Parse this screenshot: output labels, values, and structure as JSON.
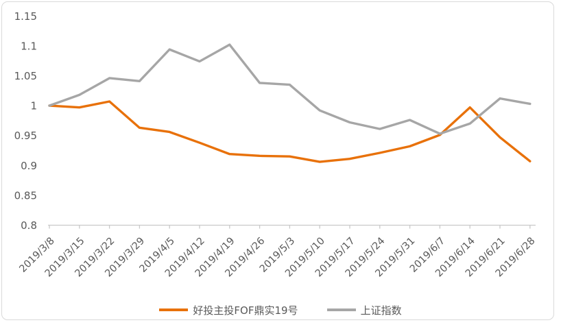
{
  "chart_data": {
    "type": "line",
    "categories": [
      "2019/3/8",
      "2019/3/15",
      "2019/3/22",
      "2019/3/29",
      "2019/4/5",
      "2019/4/12",
      "2019/4/19",
      "2019/4/26",
      "2019/5/3",
      "2019/5/10",
      "2019/5/17",
      "2019/5/24",
      "2019/5/31",
      "2019/6/7",
      "2019/6/14",
      "2019/6/21",
      "2019/6/28"
    ],
    "series": [
      {
        "name": "好投主投FOF鼎实19号",
        "color": "#E8710A",
        "values": [
          1.0,
          0.997,
          1.007,
          0.963,
          0.956,
          0.938,
          0.919,
          0.916,
          0.915,
          0.906,
          0.911,
          0.921,
          0.932,
          0.951,
          0.997,
          0.947,
          0.907
        ]
      },
      {
        "name": "上证指数",
        "color": "#A6A6A6",
        "values": [
          1.0,
          1.018,
          1.046,
          1.041,
          1.094,
          1.074,
          1.102,
          1.038,
          1.035,
          0.992,
          0.972,
          0.961,
          0.976,
          0.953,
          0.97,
          1.012,
          1.003
        ]
      }
    ],
    "y_ticks": [
      0.8,
      0.85,
      0.9,
      0.95,
      1,
      1.05,
      1.1,
      1.15
    ],
    "ylim": [
      0.8,
      1.15
    ],
    "grid": false,
    "legend_position": "bottom",
    "title": ""
  },
  "colors": {
    "axis_line": "#C9C9C9",
    "tick_label": "#595959",
    "frame_border": "#D9D9D9",
    "background": "#FFFFFF"
  }
}
